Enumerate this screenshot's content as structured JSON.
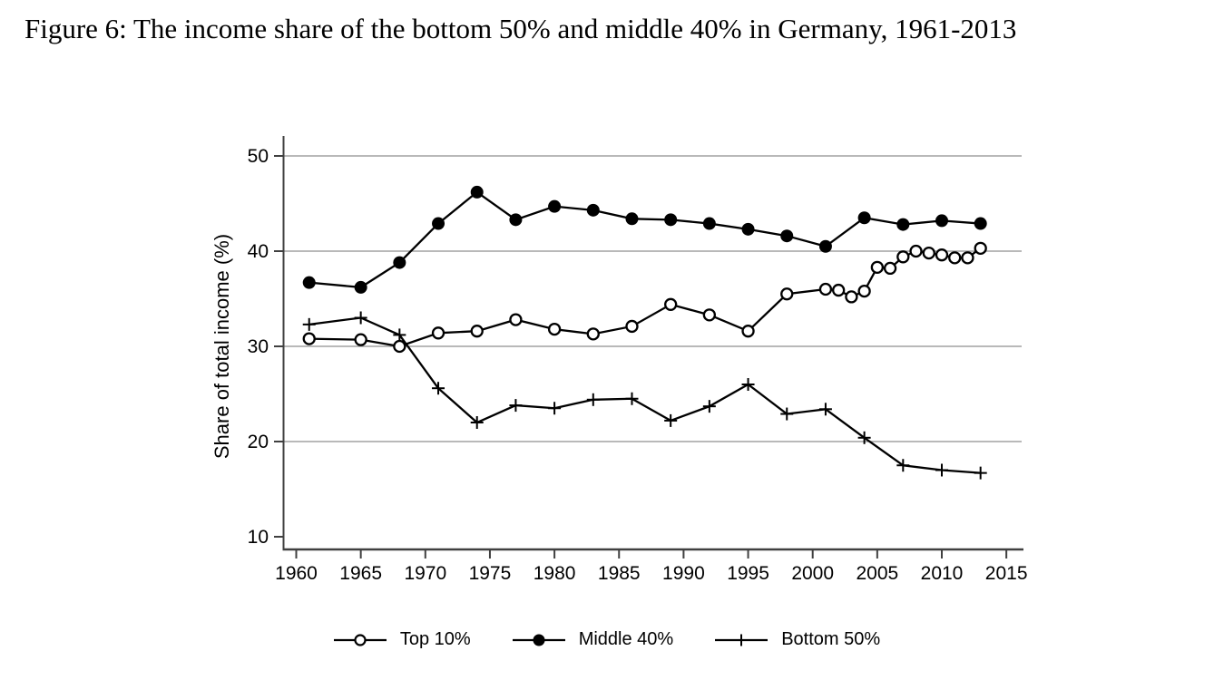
{
  "figure": {
    "caption": "Figure 6: The income share of the bottom 50% and middle 40% in Germany, 1961-2013"
  },
  "chart_data": {
    "type": "line",
    "title": "",
    "xlabel": "",
    "ylabel": "Share of total income (%)",
    "xlim": [
      1959,
      2016
    ],
    "ylim": [
      10,
      50
    ],
    "xticks": [
      1960,
      1965,
      1970,
      1975,
      1980,
      1985,
      1990,
      1995,
      2000,
      2005,
      2010,
      2015
    ],
    "yticks": [
      10,
      20,
      30,
      40,
      50
    ],
    "gridlines": [
      20,
      30,
      40,
      50
    ],
    "grid": "horizontal",
    "legend_position": "bottom",
    "line_color": "#000000",
    "gridline_color": "#8f8f8f",
    "axis_color": "#404040",
    "series": [
      {
        "name": "Top 10%",
        "marker": "open-circle",
        "color": "#000000",
        "points": [
          [
            1961,
            30.8
          ],
          [
            1965,
            30.7
          ],
          [
            1968,
            30.0
          ],
          [
            1971,
            31.4
          ],
          [
            1974,
            31.6
          ],
          [
            1977,
            32.8
          ],
          [
            1980,
            31.8
          ],
          [
            1983,
            31.3
          ],
          [
            1986,
            32.1
          ],
          [
            1989,
            34.4
          ],
          [
            1992,
            33.3
          ],
          [
            1995,
            31.6
          ],
          [
            1998,
            35.5
          ],
          [
            2001,
            36.0
          ],
          [
            2002,
            35.9
          ],
          [
            2003,
            35.2
          ],
          [
            2004,
            35.8
          ],
          [
            2005,
            38.3
          ],
          [
            2006,
            38.2
          ],
          [
            2007,
            39.4
          ],
          [
            2008,
            40.0
          ],
          [
            2009,
            39.8
          ],
          [
            2010,
            39.6
          ],
          [
            2011,
            39.3
          ],
          [
            2012,
            39.3
          ],
          [
            2013,
            40.3
          ]
        ]
      },
      {
        "name": "Middle 40%",
        "marker": "filled-circle",
        "color": "#000000",
        "points": [
          [
            1961,
            36.7
          ],
          [
            1965,
            36.2
          ],
          [
            1968,
            38.8
          ],
          [
            1971,
            42.9
          ],
          [
            1974,
            46.2
          ],
          [
            1977,
            43.3
          ],
          [
            1980,
            44.7
          ],
          [
            1983,
            44.3
          ],
          [
            1986,
            43.4
          ],
          [
            1989,
            43.3
          ],
          [
            1992,
            42.9
          ],
          [
            1995,
            42.3
          ],
          [
            1998,
            41.6
          ],
          [
            2001,
            40.5
          ],
          [
            2004,
            43.5
          ],
          [
            2007,
            42.8
          ],
          [
            2010,
            43.2
          ],
          [
            2013,
            42.9
          ]
        ]
      },
      {
        "name": "Bottom 50%",
        "marker": "plus",
        "color": "#000000",
        "points": [
          [
            1961,
            32.3
          ],
          [
            1965,
            33.0
          ],
          [
            1968,
            31.2
          ],
          [
            1971,
            25.6
          ],
          [
            1974,
            22.0
          ],
          [
            1977,
            23.8
          ],
          [
            1980,
            23.5
          ],
          [
            1983,
            24.4
          ],
          [
            1986,
            24.5
          ],
          [
            1989,
            22.2
          ],
          [
            1992,
            23.7
          ],
          [
            1995,
            26.0
          ],
          [
            1998,
            22.9
          ],
          [
            2001,
            23.4
          ],
          [
            2004,
            20.4
          ],
          [
            2007,
            17.5
          ],
          [
            2010,
            17.0
          ],
          [
            2013,
            16.7
          ]
        ]
      }
    ]
  }
}
